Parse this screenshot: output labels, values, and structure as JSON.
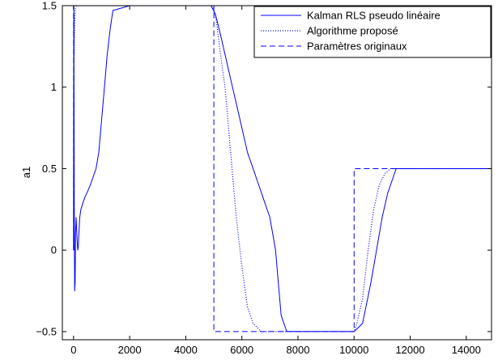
{
  "chart_data": {
    "type": "line",
    "title": "",
    "xlabel": "",
    "ylabel": "a1",
    "xlim": [
      -400,
      14900
    ],
    "ylim": [
      -0.55,
      1.5
    ],
    "xticks": [
      0,
      2000,
      4000,
      6000,
      8000,
      10000,
      12000,
      14000
    ],
    "xtick_labels": [
      "0",
      "2000",
      "4000",
      "6000",
      "8000",
      "10000",
      "12000",
      "14000"
    ],
    "yticks": [
      -0.5,
      0,
      0.5,
      1,
      1.5
    ],
    "ytick_labels": [
      "−0.5",
      "0",
      "0.5",
      "1",
      "1.5"
    ],
    "grid": false,
    "legend_position": "top-right",
    "series": [
      {
        "name": "Kalman RLS pseudo linéaire",
        "style": "solid",
        "color": "#0000ff",
        "x": [
          0,
          10,
          25,
          40,
          55,
          70,
          90,
          110,
          130,
          150,
          170,
          190,
          220,
          260,
          300,
          350,
          420,
          500,
          600,
          700,
          800,
          900,
          1000,
          1100,
          1200,
          1300,
          1400,
          2000,
          3000,
          4000,
          4900,
          5050,
          5200,
          5400,
          5600,
          5800,
          6000,
          6200,
          6400,
          6600,
          6800,
          7000,
          7100,
          7200,
          7300,
          7400,
          7600,
          8000,
          9000,
          10000,
          10300,
          10600,
          10800,
          11000,
          11200,
          11400,
          11500,
          12000,
          13000,
          14000,
          14900
        ],
        "y": [
          0,
          1.5,
          0.3,
          -0.25,
          -0.2,
          0.1,
          0.2,
          0.12,
          0.05,
          0.0,
          0.02,
          0.1,
          0.2,
          0.25,
          0.27,
          0.3,
          0.33,
          0.36,
          0.4,
          0.45,
          0.5,
          0.6,
          0.8,
          1.0,
          1.2,
          1.35,
          1.47,
          1.5,
          1.5,
          1.5,
          1.5,
          1.45,
          1.35,
          1.2,
          1.05,
          0.9,
          0.75,
          0.6,
          0.5,
          0.4,
          0.3,
          0.2,
          0.1,
          0.0,
          -0.2,
          -0.4,
          -0.5,
          -0.5,
          -0.5,
          -0.5,
          -0.45,
          -0.2,
          0.0,
          0.2,
          0.35,
          0.45,
          0.5,
          0.5,
          0.5,
          0.5,
          0.5
        ]
      },
      {
        "name": "Algorithme proposé",
        "style": "dotted",
        "color": "#0000ff",
        "x": [
          0,
          5,
          10,
          20,
          40,
          60,
          100,
          150,
          200,
          300,
          500,
          1000,
          2000,
          3000,
          4000,
          4900,
          5000,
          5100,
          5200,
          5400,
          5600,
          5800,
          6000,
          6200,
          6400,
          6700,
          7000,
          8000,
          9000,
          9800,
          10000,
          10100,
          10300,
          10500,
          10700,
          10900,
          11100,
          11300,
          11500,
          12000,
          13000,
          14000,
          14900
        ],
        "y": [
          0,
          1.0,
          1.45,
          1.2,
          1.4,
          1.48,
          1.5,
          1.5,
          1.5,
          1.5,
          1.5,
          1.5,
          1.5,
          1.5,
          1.5,
          1.5,
          1.48,
          1.4,
          1.25,
          1.0,
          0.6,
          0.2,
          -0.1,
          -0.35,
          -0.45,
          -0.5,
          -0.5,
          -0.5,
          -0.5,
          -0.5,
          -0.5,
          -0.45,
          -0.3,
          0.0,
          0.25,
          0.4,
          0.47,
          0.5,
          0.5,
          0.5,
          0.5,
          0.5,
          0.5
        ]
      },
      {
        "name": "Paramètres originaux",
        "style": "dashed",
        "color": "#0000ff",
        "x": [
          0,
          0,
          5000,
          5000,
          10000,
          10000,
          14900
        ],
        "y": [
          0,
          1.5,
          1.5,
          -0.5,
          -0.5,
          0.5,
          0.5
        ]
      }
    ]
  }
}
